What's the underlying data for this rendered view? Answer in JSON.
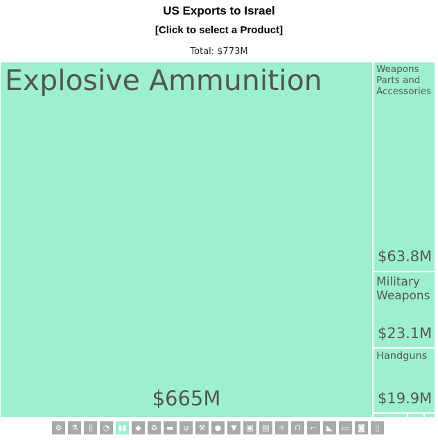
{
  "header": {
    "title": "US Exports to Israel",
    "subtitle": "[Click to select a Product]",
    "total": "Total: $773M"
  },
  "chart_data": {
    "type": "treemap",
    "title": "US Exports to Israel",
    "total_label": "Total: $773M",
    "items": [
      {
        "name": "Explosive Ammunition",
        "value": 665,
        "label": "$665M"
      },
      {
        "name": "Weapons Parts and Accessories",
        "value": 63.8,
        "label": "$63.8M"
      },
      {
        "name": "Military Weapons",
        "value": 23.1,
        "label": "$23.1M"
      },
      {
        "name": "Handguns",
        "value": 19.9,
        "label": "$19.9M"
      },
      {
        "name": "",
        "value": 0.6,
        "label": ""
      },
      {
        "name": "",
        "value": 0.5,
        "label": ""
      },
      {
        "name": "",
        "value": 0.3,
        "label": ""
      }
    ],
    "colors": {
      "cell": "#9df0cf",
      "text": "#555555"
    }
  },
  "toolbar": [
    {
      "icon": "gear-icon",
      "glyph": "⚙",
      "active": false
    },
    {
      "icon": "flask-icon",
      "glyph": "⚗",
      "active": false
    },
    {
      "icon": "road-icon",
      "glyph": "∥",
      "active": false
    },
    {
      "icon": "gauge-icon",
      "glyph": "◔",
      "active": false
    },
    {
      "icon": "bullets-icon",
      "glyph": "▮▮",
      "active": true
    },
    {
      "icon": "diamond-icon",
      "glyph": "◆",
      "active": false
    },
    {
      "icon": "recycle-icon",
      "glyph": "♻",
      "active": false
    },
    {
      "icon": "anvil-icon",
      "glyph": "▬",
      "active": false
    },
    {
      "icon": "wheat-icon",
      "glyph": "ψ",
      "active": false
    },
    {
      "icon": "hammer-icon",
      "glyph": "⚒",
      "active": false
    },
    {
      "icon": "apple-icon",
      "glyph": "●",
      "active": false
    },
    {
      "icon": "shirt-icon",
      "glyph": "▼",
      "active": false
    },
    {
      "icon": "box-icon",
      "glyph": "▣",
      "active": false
    },
    {
      "icon": "paper-icon",
      "glyph": "▤",
      "active": false
    },
    {
      "icon": "chemistry-icon",
      "glyph": "⚛",
      "active": false
    },
    {
      "icon": "chair-icon",
      "glyph": "⊓",
      "active": false
    },
    {
      "icon": "gun-icon",
      "glyph": "⌐",
      "active": false
    },
    {
      "icon": "shoe-icon",
      "glyph": "◣",
      "active": false
    },
    {
      "icon": "machine-icon",
      "glyph": "▭",
      "active": false
    },
    {
      "icon": "car-icon",
      "glyph": "◙",
      "active": false
    },
    {
      "icon": "doc-icon",
      "glyph": "▯",
      "active": false
    }
  ]
}
